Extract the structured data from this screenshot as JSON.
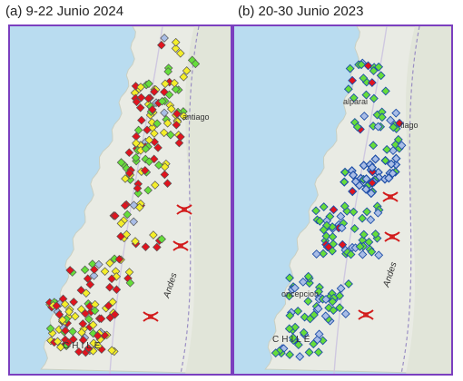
{
  "panels": [
    {
      "title": "(a) 9-22 Junio 2024"
    },
    {
      "title": "(b) 20-30 Junio 2023"
    }
  ],
  "map_labels": {
    "santiago": "antiago",
    "santiago_b": "tiago",
    "valparaiso": "alparai",
    "concepcion": "oncepcion",
    "andes": "Andes",
    "chile": "CHILE"
  },
  "colors": {
    "sea": "#b9dcf0",
    "land": "#e9ebe4",
    "frame": "#7b3fbf",
    "red": "#e0141e",
    "yellow": "#f4ee2a",
    "green": "#66dd3a",
    "blue": "#a9bde6",
    "outline": "#1f4fa8"
  },
  "icons": {
    "mountain_pass": "mountain-pass-icon",
    "station": "diamond-icon"
  }
}
